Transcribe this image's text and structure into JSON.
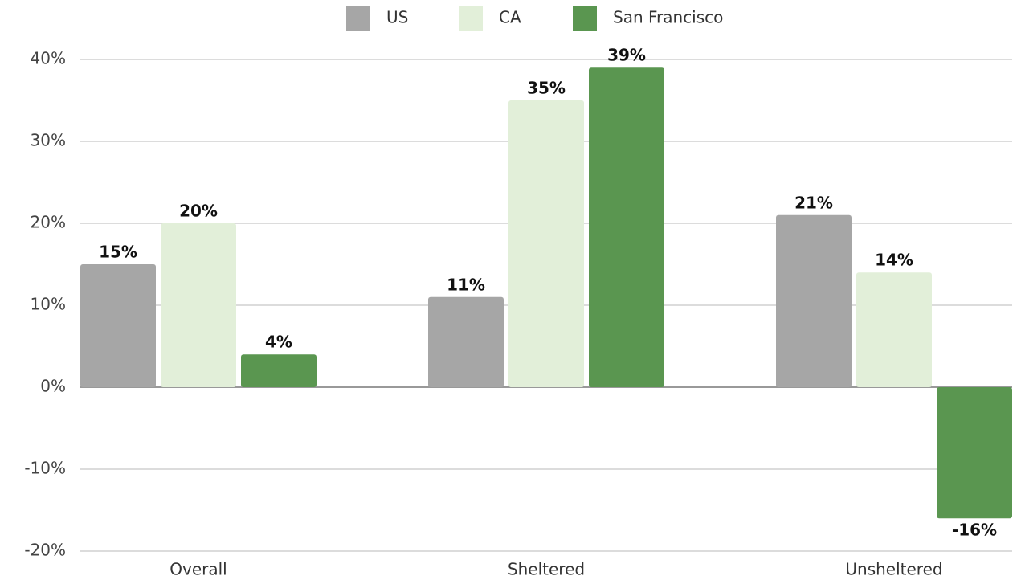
{
  "chart_data": {
    "type": "bar",
    "categories": [
      "Overall",
      "Sheltered",
      "Unsheltered"
    ],
    "series": [
      {
        "name": "US",
        "color": "#a6a6a6",
        "values": [
          15,
          11,
          21
        ],
        "value_labels": [
          "15%",
          "11%",
          "21%"
        ]
      },
      {
        "name": "CA",
        "color": "#e2efd9",
        "values": [
          20,
          35,
          14
        ],
        "value_labels": [
          "20%",
          "35%",
          "14%"
        ]
      },
      {
        "name": "San Francisco",
        "color": "#5a9650",
        "values": [
          4,
          39,
          -16
        ],
        "value_labels": [
          "4%",
          "39%",
          "-16%"
        ]
      }
    ],
    "ylim": [
      -20,
      40
    ],
    "yticks": [
      {
        "value": -20,
        "label": "-20%"
      },
      {
        "value": -10,
        "label": "-10%"
      },
      {
        "value": 0,
        "label": "0%"
      },
      {
        "value": 10,
        "label": "10%"
      },
      {
        "value": 20,
        "label": "20%"
      },
      {
        "value": 30,
        "label": "30%"
      },
      {
        "value": 40,
        "label": "40%"
      }
    ],
    "grid": true,
    "legend": "top"
  }
}
